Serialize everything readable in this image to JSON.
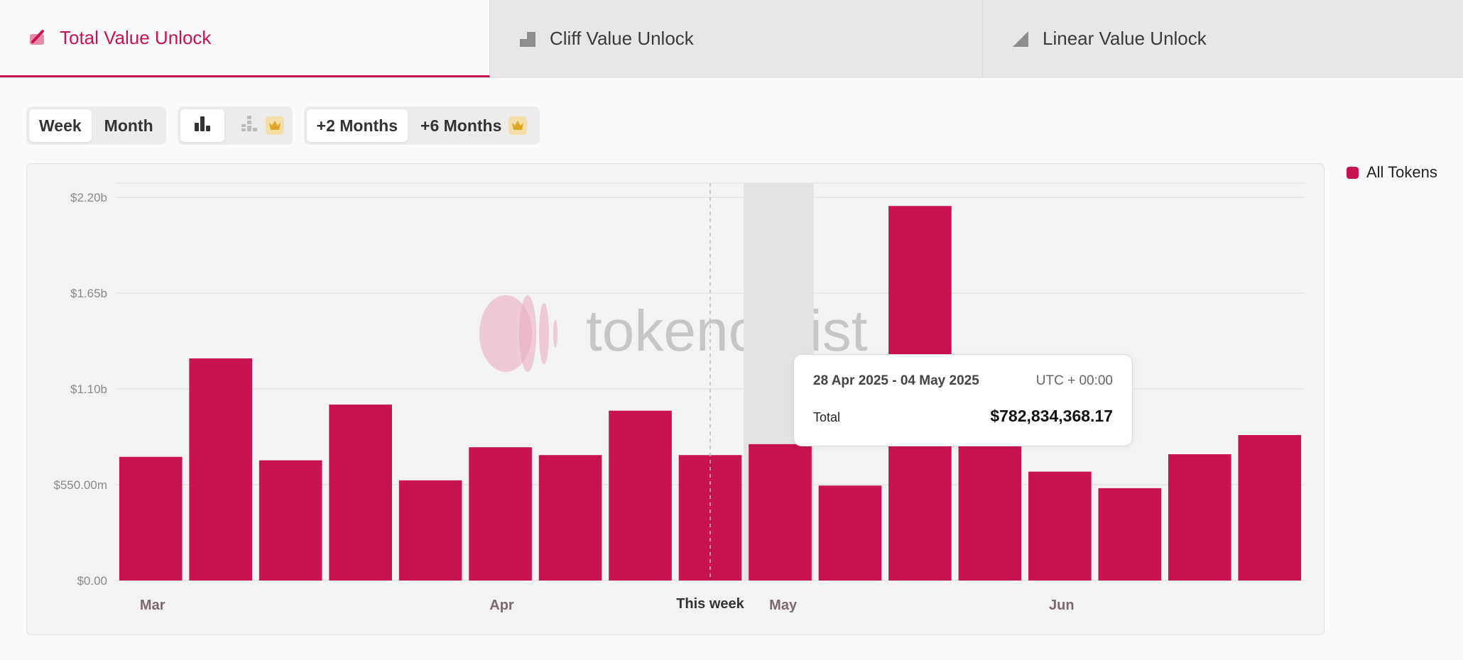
{
  "tabs": [
    {
      "label": "Total Value Unlock",
      "icon": "total-value-icon",
      "active": true
    },
    {
      "label": "Cliff Value Unlock",
      "icon": "cliff-value-icon",
      "active": false
    },
    {
      "label": "Linear Value Unlock",
      "icon": "linear-value-icon",
      "active": false
    }
  ],
  "controls": {
    "week_label": "Week",
    "month_label": "Month",
    "plus2_label": "+2 Months",
    "plus6_label": "+6 Months"
  },
  "colors": {
    "accent": "#c8134f",
    "crown": "#e0a526"
  },
  "legend": {
    "label": "All Tokens"
  },
  "watermark": "tokenomist",
  "tooltip": {
    "range": "28 Apr 2025 - 04 May 2025",
    "timezone": "UTC + 00:00",
    "total_label": "Total",
    "total_value": "$782,834,368.17"
  },
  "chart_data": {
    "type": "bar",
    "series": [
      {
        "name": "All Tokens",
        "values": [
          710000000,
          1275000000,
          690000000,
          1010000000,
          575000000,
          765000000,
          720000000,
          975000000,
          720000000,
          782834368.17,
          545000000,
          2150000000,
          850000000,
          625000000,
          530000000,
          725000000,
          835000000
        ]
      }
    ],
    "y_ticks": [
      {
        "value": 0,
        "label": "$0.00"
      },
      {
        "value": 550000000,
        "label": "$550.00m"
      },
      {
        "value": 1100000000,
        "label": "$1.10b"
      },
      {
        "value": 1650000000,
        "label": "$1.65b"
      },
      {
        "value": 2200000000,
        "label": "$2.20b"
      }
    ],
    "ylim": [
      0,
      2200000000
    ],
    "x_labels": [
      {
        "index": 0,
        "label": "Mar"
      },
      {
        "index": 5,
        "label": "Apr"
      },
      {
        "index": 9,
        "label": "May"
      },
      {
        "index": 13,
        "label": "Jun"
      }
    ],
    "this_week": {
      "index": 8,
      "label": "This week"
    },
    "highlighted_index": 9,
    "grid": true
  }
}
